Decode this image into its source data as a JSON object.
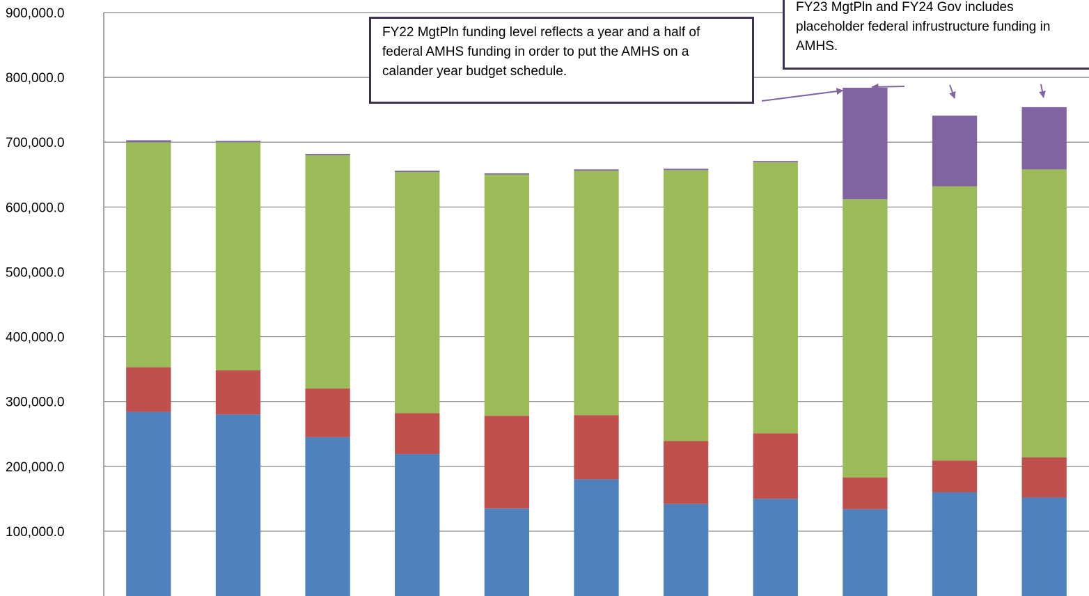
{
  "chart_data": {
    "type": "bar",
    "stacked": true,
    "title": "",
    "xlabel": "",
    "ylabel": "",
    "ylim": [
      0,
      900000
    ],
    "yticks": [
      100000,
      200000,
      300000,
      400000,
      500000,
      600000,
      700000,
      800000,
      900000
    ],
    "ytick_labels": [
      "100,000.0",
      "200,000.0",
      "300,000.0",
      "400,000.0",
      "500,000.0",
      "600,000.0",
      "700,000.0",
      "800,000.0",
      "900,000.0"
    ],
    "grid": true,
    "legend": "none",
    "categories": [
      "",
      "",
      "",
      "",
      "",
      "",
      "",
      "",
      "",
      "",
      ""
    ],
    "series": [
      {
        "color": "#4f81bd",
        "values": [
          284000,
          280000,
          245000,
          219000,
          135000,
          180000,
          142000,
          150000,
          134000,
          160000,
          152000
        ]
      },
      {
        "color": "#c0504d",
        "values": [
          69000,
          68000,
          75000,
          63000,
          143000,
          99000,
          97000,
          101000,
          49000,
          49000,
          62000
        ]
      },
      {
        "color": "#9bbb59",
        "values": [
          347000,
          352000,
          360000,
          372000,
          372000,
          377000,
          418000,
          418000,
          429000,
          423000,
          444000
        ]
      },
      {
        "color": "#8064a2",
        "values": [
          3000,
          2000,
          2000,
          2000,
          2000,
          2000,
          2000,
          2000,
          172000,
          109000,
          96000
        ]
      }
    ],
    "annotations": [
      {
        "text": "FY22 MgtPln funding level reflects a year and a half of federal AMHS funding in order to put the AMHS on a calander year budget schedule."
      },
      {
        "text": "FY23 MgtPln and FY24 Gov includes placeholder federal infrustructure funding in AMHS."
      }
    ]
  }
}
